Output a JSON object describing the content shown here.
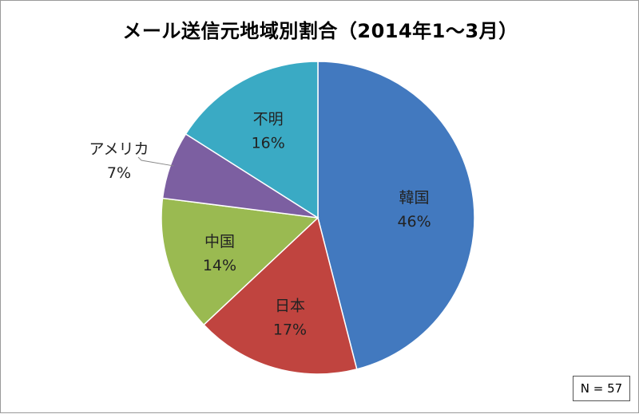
{
  "chart_data": {
    "type": "pie",
    "title": "メール送信元地域別割合（2014年1～3月）",
    "slices": [
      {
        "label": "韓国",
        "value": 46,
        "value_label": "46%",
        "color": "#4279bf"
      },
      {
        "label": "日本",
        "value": 17,
        "value_label": "17%",
        "color": "#c0443f"
      },
      {
        "label": "中国",
        "value": 14,
        "value_label": "14%",
        "color": "#9aba51"
      },
      {
        "label": "アメリカ",
        "value": 7,
        "value_label": "7%",
        "color": "#7c5fa1"
      },
      {
        "label": "不明",
        "value": 16,
        "value_label": "16%",
        "color": "#3aaac4"
      }
    ],
    "start_angle_deg": 0,
    "direction": "clockwise",
    "note": "N = 57"
  }
}
